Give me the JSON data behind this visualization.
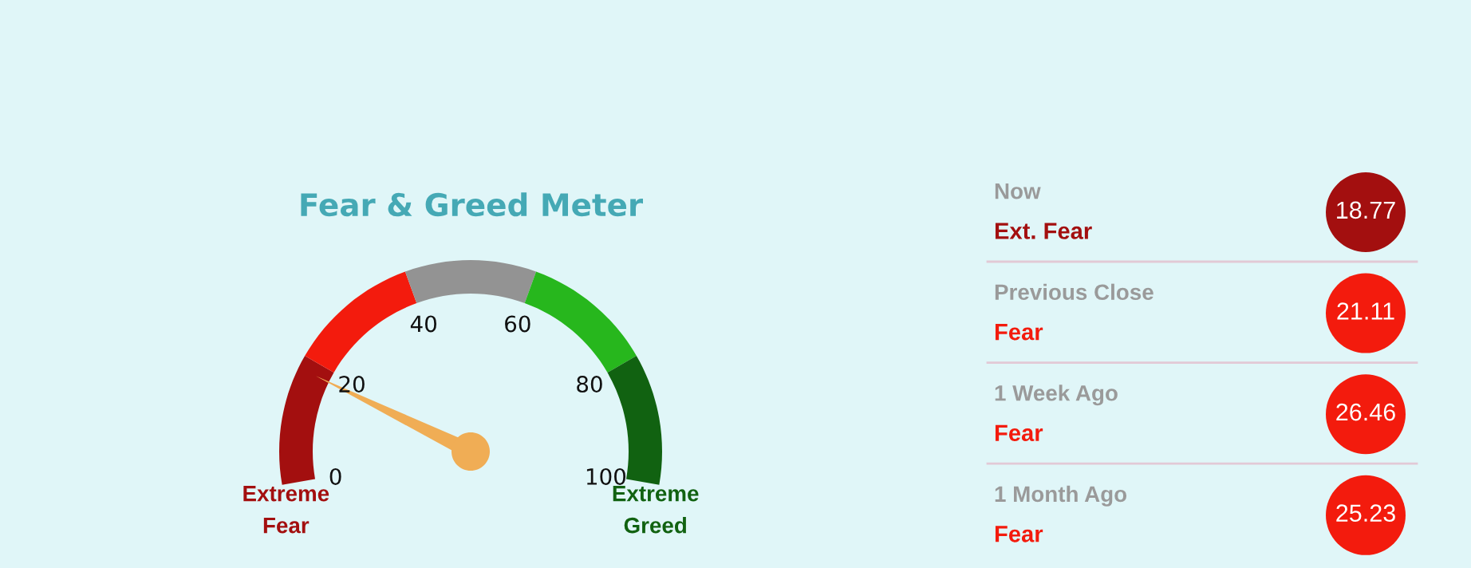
{
  "chart_data": [
    {
      "type": "donut",
      "title": "Fear & Greed Meter",
      "categories": [
        "Extreme Fear",
        null,
        null,
        null,
        "Extreme Greed"
      ],
      "values": [
        20,
        20,
        20,
        20,
        20
      ],
      "colors": [
        "#a30f0f",
        "#f31b0d",
        "#939393",
        "#27b71d",
        "#116211"
      ],
      "annotations": [
        "0",
        "20",
        "40",
        "60",
        "80",
        "100"
      ],
      "needle": "Extreme Fear"
    },
    {
      "type": "other",
      "annotations": [
        "Now",
        "Ext. Fear",
        "18.77",
        "Previous Close",
        "Fear",
        "21.11",
        "1 Week Ago",
        "Fear",
        "26.46",
        "1 Month Ago",
        "Fear",
        "25.23"
      ],
      "colors": [
        "#a30f0f",
        "#f31b0d",
        "#f31b0d",
        "#f31b0d"
      ]
    }
  ]
}
